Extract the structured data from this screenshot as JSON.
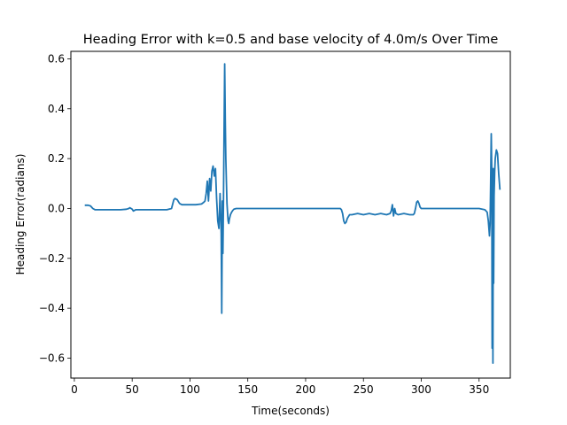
{
  "chart_data": {
    "type": "line",
    "title": "Heading Error with k=0.5 and base velocity of 4.0m/s Over Time",
    "xlabel": "Time(seconds)",
    "ylabel": "Heading Error(radians)",
    "xlim": [
      -3,
      377
    ],
    "ylim": [
      -0.68,
      0.63
    ],
    "xticks": [
      0,
      50,
      100,
      150,
      200,
      250,
      300,
      350
    ],
    "yticks": [
      -0.6,
      -0.4,
      -0.2,
      0.0,
      0.2,
      0.4,
      0.6
    ],
    "xtick_labels": [
      "0",
      "50",
      "100",
      "150",
      "200",
      "250",
      "300",
      "350"
    ],
    "ytick_labels": [
      "−0.6",
      "−0.4",
      "−0.2",
      "0.0",
      "0.2",
      "0.4",
      "0.6"
    ],
    "grid": false,
    "series": [
      {
        "color": "#1f77b4",
        "x": [
          9,
          12,
          14,
          16,
          18,
          25,
          30,
          40,
          45,
          47,
          48,
          50,
          51,
          53,
          60,
          70,
          80,
          84,
          86,
          87,
          89,
          91,
          93,
          95,
          100,
          105,
          110,
          112,
          113,
          114,
          115,
          116,
          117,
          118,
          119,
          120,
          121,
          122,
          123,
          124,
          125,
          126,
          127,
          127.5,
          128,
          128.5,
          129,
          129.5,
          130,
          130.5,
          131,
          131.5,
          132,
          132.5,
          133,
          133.5,
          134,
          135,
          136,
          137,
          138,
          140,
          142,
          145,
          150,
          160,
          180,
          200,
          210,
          220,
          230,
          231,
          232,
          233,
          234,
          235,
          236,
          238,
          240,
          245,
          250,
          255,
          260,
          265,
          270,
          273,
          274,
          275,
          276,
          277,
          278,
          280,
          285,
          290,
          293,
          294,
          295,
          296,
          297,
          298,
          299,
          300,
          302,
          310,
          320,
          330,
          340,
          350,
          355,
          357,
          358,
          359,
          359.5,
          360,
          360.5,
          361,
          361.3,
          361.6,
          362,
          362.3,
          362.6,
          363,
          363.5,
          364,
          365,
          366,
          367,
          368
        ],
        "y": [
          0.013,
          0.013,
          0.01,
          0.0,
          -0.005,
          -0.005,
          -0.005,
          -0.005,
          -0.003,
          0.0,
          0.003,
          -0.003,
          -0.01,
          -0.005,
          -0.005,
          -0.005,
          -0.005,
          0.0,
          0.035,
          0.04,
          0.035,
          0.02,
          0.015,
          0.015,
          0.015,
          0.015,
          0.018,
          0.025,
          0.03,
          0.06,
          0.11,
          0.03,
          0.12,
          0.07,
          0.15,
          0.17,
          0.13,
          0.16,
          0.04,
          -0.05,
          -0.08,
          0.06,
          -0.1,
          -0.42,
          0.03,
          -0.18,
          0.05,
          0.3,
          0.58,
          0.35,
          0.2,
          0.1,
          0.02,
          -0.02,
          -0.05,
          -0.06,
          -0.045,
          -0.025,
          -0.015,
          -0.008,
          -0.003,
          0.0,
          0.0,
          0.0,
          0.0,
          0.0,
          0.0,
          0.0,
          0.0,
          0.0,
          0.0,
          -0.005,
          -0.02,
          -0.05,
          -0.06,
          -0.055,
          -0.04,
          -0.025,
          -0.025,
          -0.02,
          -0.025,
          -0.02,
          -0.025,
          -0.02,
          -0.025,
          -0.02,
          -0.01,
          0.015,
          -0.03,
          0.0,
          -0.02,
          -0.025,
          -0.02,
          -0.025,
          -0.025,
          -0.02,
          0.0,
          0.025,
          0.03,
          0.02,
          0.005,
          0.0,
          0.0,
          0.0,
          0.0,
          0.0,
          0.0,
          0.0,
          -0.005,
          -0.015,
          -0.05,
          -0.11,
          -0.06,
          0.1,
          0.3,
          0.15,
          -0.56,
          -0.1,
          -0.62,
          0.16,
          -0.3,
          0.05,
          0.15,
          0.2,
          0.235,
          0.22,
          0.14,
          0.075
        ]
      }
    ]
  }
}
